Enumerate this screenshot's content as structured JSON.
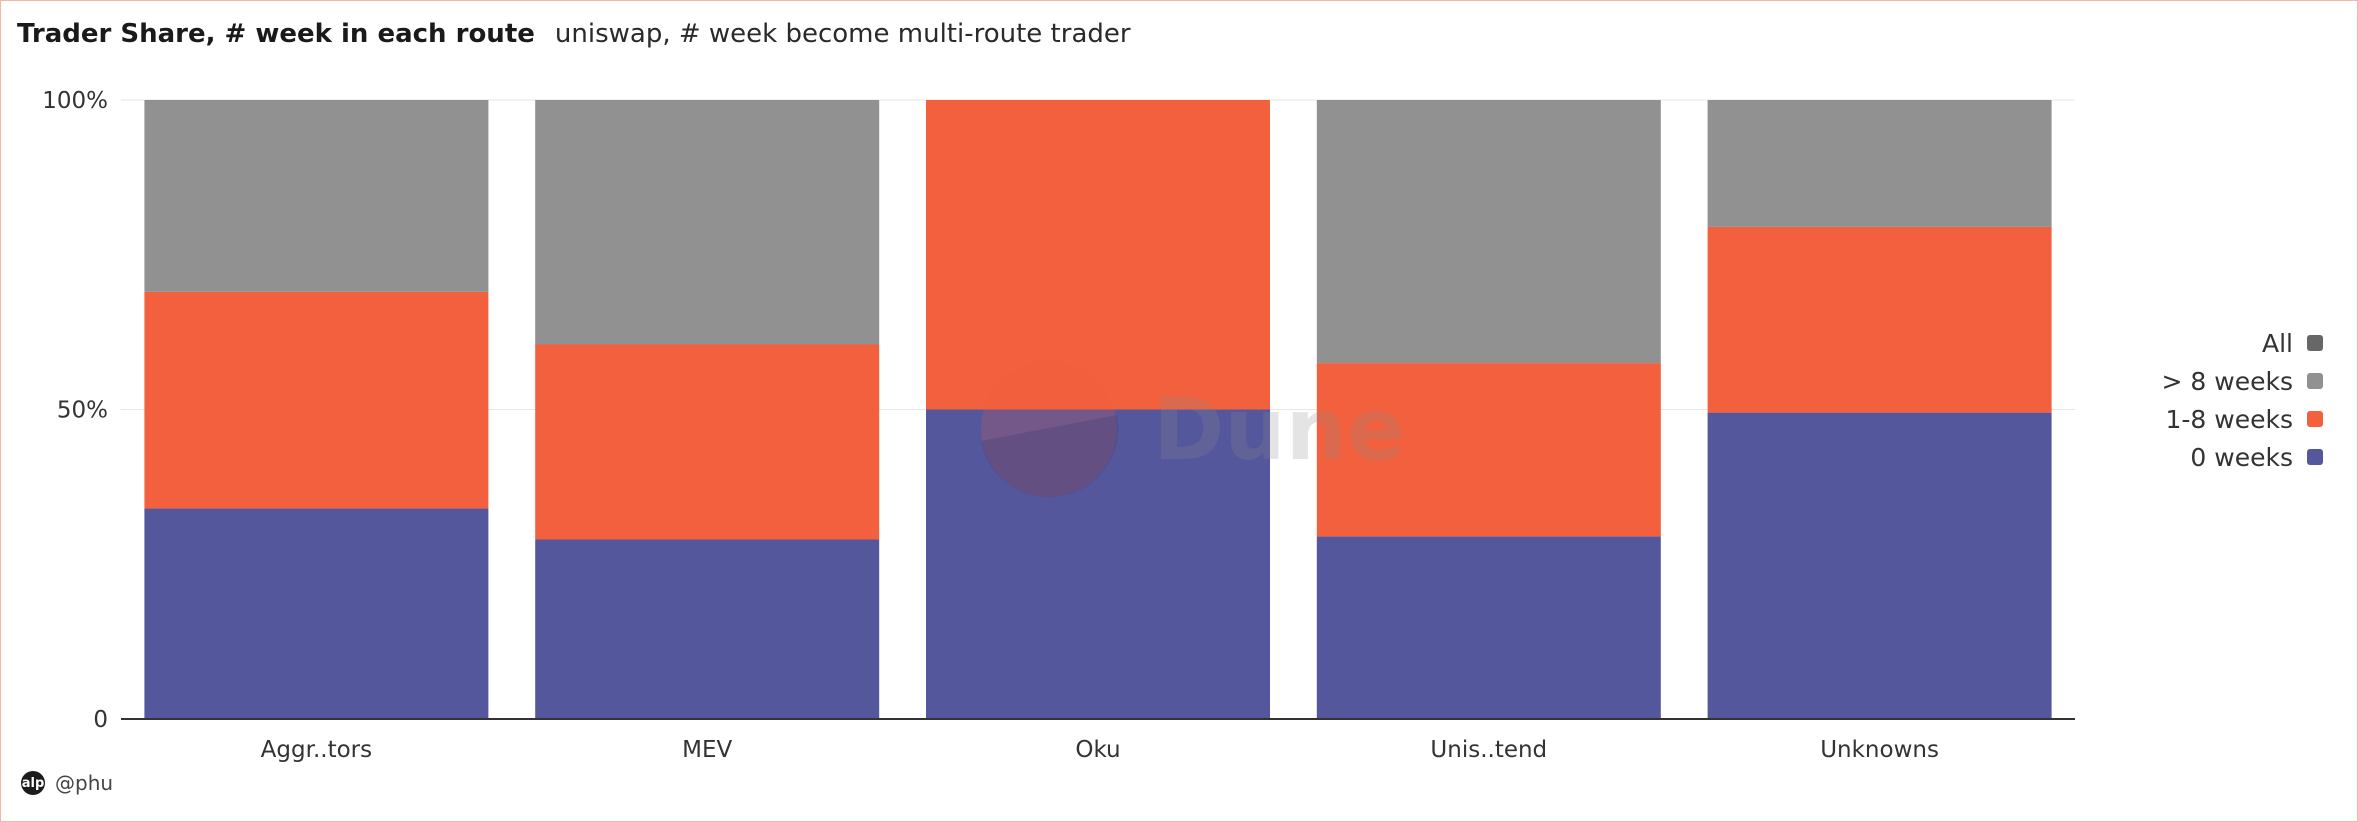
{
  "header": {
    "title": "Trader Share, # week in each route",
    "subtitle": "uniswap, # week become multi-route trader"
  },
  "footer": {
    "avatar_text": "alp",
    "author": "@phu"
  },
  "watermark": {
    "text": "Dune"
  },
  "colors": {
    "all": "#676767",
    "gt8": "#919191",
    "w18": "#f2603e",
    "w0": "#55579d",
    "grid": "#e6e6e6",
    "axis": "#333333"
  },
  "chart_data": {
    "type": "bar",
    "stacked": true,
    "normalized": true,
    "categories": [
      "Aggr..tors",
      "MEV",
      "Oku",
      "Unis..tend",
      "Unknowns"
    ],
    "series": [
      {
        "name": "0 weeks",
        "color": "#55579d",
        "values": [
          34,
          29,
          50,
          29.5,
          49.5
        ]
      },
      {
        "name": "1-8 weeks",
        "color": "#f2603e",
        "values": [
          35,
          31.5,
          50,
          28,
          30
        ]
      },
      {
        "name": "> 8 weeks",
        "color": "#919191",
        "values": [
          31,
          39.5,
          0,
          42.5,
          20.5
        ]
      }
    ],
    "legend": [
      {
        "name": "All",
        "color": "#676767"
      },
      {
        "name": "> 8 weeks",
        "color": "#919191"
      },
      {
        "name": "1-8 weeks",
        "color": "#f2603e"
      },
      {
        "name": "0 weeks",
        "color": "#55579d"
      }
    ],
    "ylim": [
      0,
      100
    ],
    "yticks": [
      "0",
      "50%",
      "100%"
    ],
    "grid": true,
    "legend_position": "right"
  }
}
